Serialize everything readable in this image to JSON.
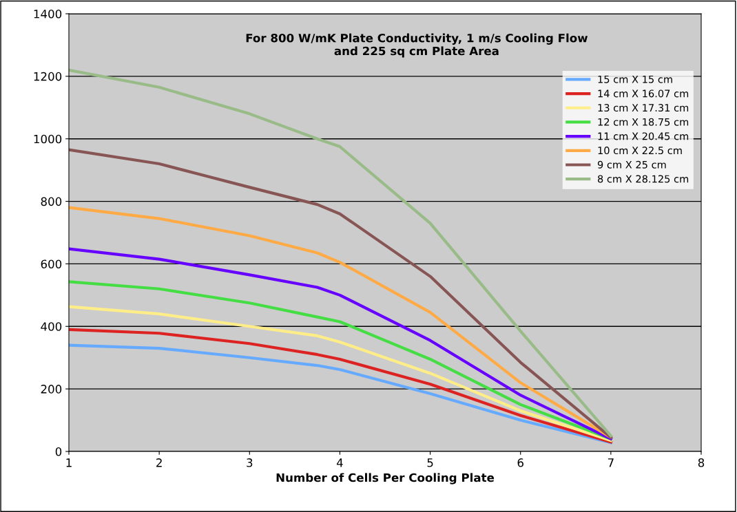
{
  "chart_data": {
    "type": "line",
    "title": "For 800 W/mK Plate Conductivity, 1 m/s Cooling Flow\nand 225 sq cm Plate Area",
    "xlabel": "Number of Cells Per Cooling Plate",
    "x": [
      1,
      2,
      3,
      3.75,
      4,
      5,
      6,
      7
    ],
    "series": [
      {
        "name": "15 cm X 15 cm",
        "color": "#66aaff",
        "values": [
          340,
          330,
          300,
          275,
          262,
          185,
          100,
          28
        ]
      },
      {
        "name": "14 cm X 16.07 cm",
        "color": "#dd2222",
        "values": [
          390,
          378,
          345,
          310,
          295,
          215,
          115,
          30
        ]
      },
      {
        "name": "13 cm X 17.31 cm",
        "color": "#ffee88",
        "values": [
          463,
          440,
          400,
          370,
          350,
          250,
          130,
          35
        ]
      },
      {
        "name": "12 cm X 18.75 cm",
        "color": "#44dd44",
        "values": [
          543,
          520,
          475,
          430,
          415,
          295,
          150,
          40
        ]
      },
      {
        "name": "11 cm X 20.45 cm",
        "color": "#6600ff",
        "values": [
          648,
          615,
          565,
          525,
          500,
          355,
          180,
          40
        ]
      },
      {
        "name": "10 cm X 22.5 cm",
        "color": "#ffaa44",
        "values": [
          780,
          745,
          690,
          635,
          605,
          445,
          220,
          45
        ]
      },
      {
        "name": "9 cm X 25 cm",
        "color": "#885555",
        "values": [
          965,
          920,
          845,
          790,
          760,
          560,
          285,
          45
        ]
      },
      {
        "name": "8 cm X 28.125 cm",
        "color": "#99bb88",
        "values": [
          1220,
          1165,
          1080,
          1000,
          975,
          730,
          385,
          50
        ]
      }
    ],
    "xlim": [
      1,
      8
    ],
    "xticks": [
      1,
      2,
      3,
      4,
      5,
      6,
      7,
      8
    ],
    "ylim": [
      0,
      1400
    ],
    "yticks": [
      0,
      200,
      400,
      600,
      800,
      1000,
      1200,
      1400
    ],
    "grid": "y",
    "legend": "top right",
    "marker": "none",
    "line_style": "solid"
  }
}
